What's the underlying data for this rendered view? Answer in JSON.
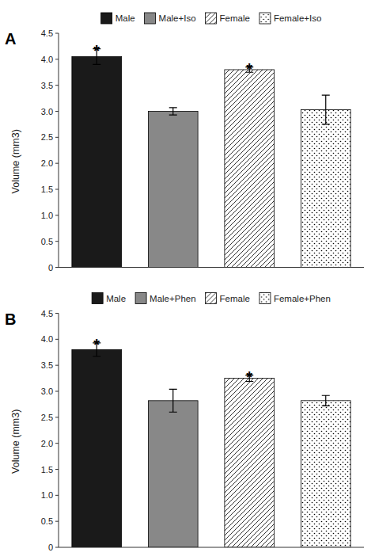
{
  "chart_data": [
    {
      "type": "bar",
      "title": "A",
      "ylabel": "Volume (mm3)",
      "categories": [
        "Male",
        "Male+Iso",
        "Female",
        "Female+Iso"
      ],
      "values": [
        4.05,
        3.0,
        3.8,
        3.03
      ],
      "errors": [
        0.15,
        0.07,
        0.05,
        0.28
      ],
      "colors": [
        "#1a1a1a",
        "#888888",
        "white",
        "white"
      ],
      "annotations": [
        {
          "text": "*",
          "x": "Male"
        },
        {
          "text": "*",
          "x": "Female"
        }
      ],
      "ylim": [
        0,
        4.5
      ],
      "yticks": [
        0,
        0.5,
        {
          "value": 1,
          "label": "1.0"
        },
        1.5,
        {
          "value": 2,
          "label": "2.0"
        },
        2.5,
        {
          "value": 3,
          "label": "3.0"
        },
        3.5,
        {
          "value": 4,
          "label": "4.0"
        },
        4.5
      ],
      "grid": false,
      "legend": "top",
      "tick_labels": "y"
    },
    {
      "type": "bar",
      "title": "B",
      "ylabel": "Volume (mm3)",
      "categories": [
        "Male",
        "Male+Phen",
        "Female",
        "Female+Phen"
      ],
      "values": [
        3.8,
        2.82,
        3.25,
        2.82
      ],
      "errors": [
        0.13,
        0.22,
        0.06,
        0.1
      ],
      "colors": [
        "#1a1a1a",
        "#888888",
        "white",
        "white"
      ],
      "annotations": [
        {
          "text": "*",
          "x": "Male"
        },
        {
          "text": "*",
          "x": "Female"
        }
      ],
      "ylim": [
        0,
        4.5
      ],
      "yticks": [
        0,
        0.5,
        {
          "value": 1,
          "label": "1.0"
        },
        1.5,
        {
          "value": 2,
          "label": "2.0"
        },
        2.5,
        {
          "value": 3,
          "label": "3.0"
        },
        3.5,
        {
          "value": 4,
          "label": "4.0"
        },
        4.5
      ],
      "grid": false,
      "legend": "top",
      "tick_labels": "y"
    }
  ]
}
